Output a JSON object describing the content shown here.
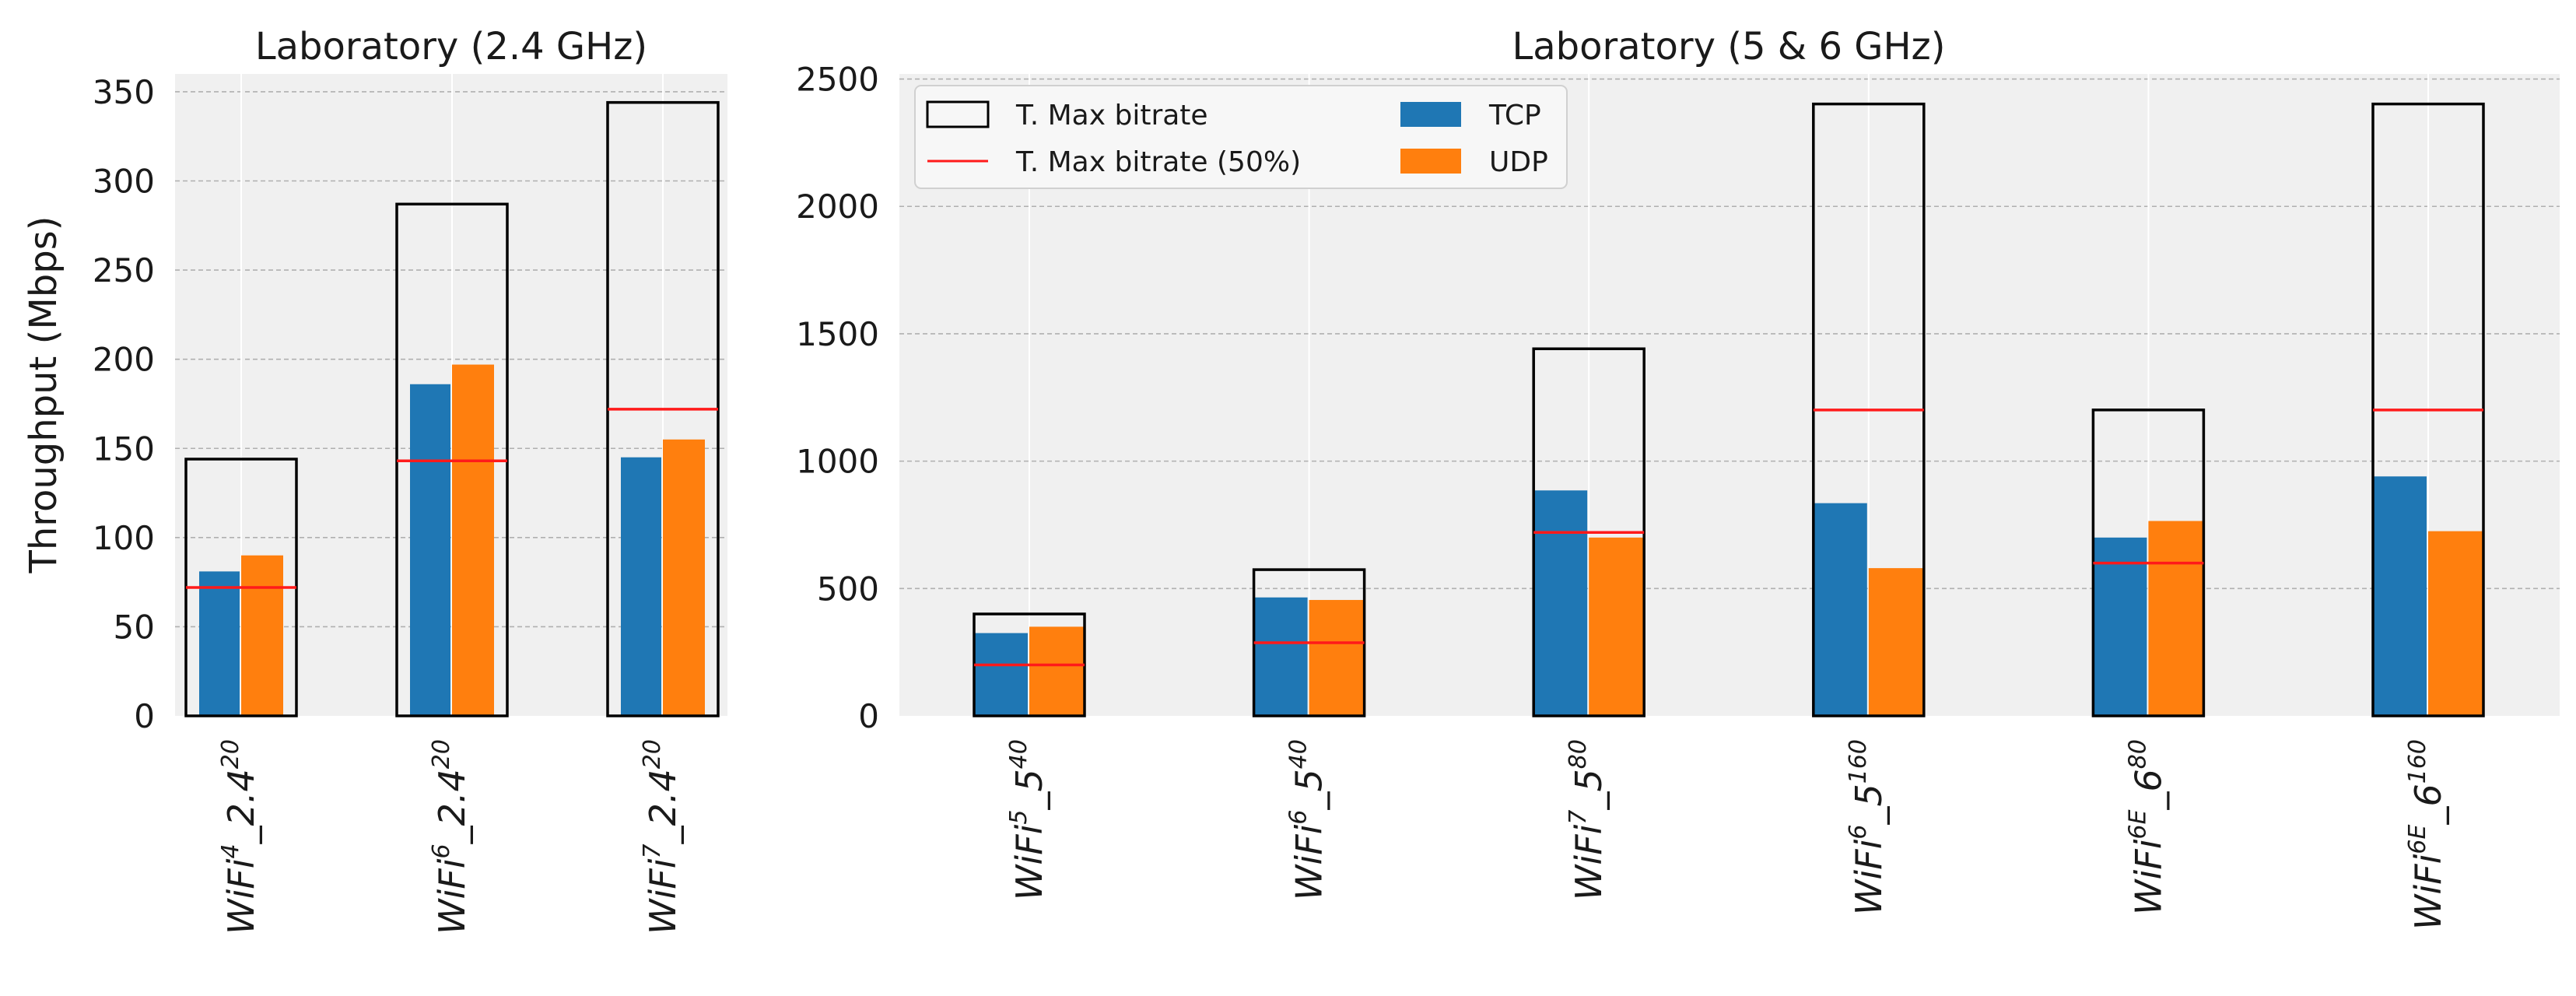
{
  "chart_data": [
    {
      "type": "bar",
      "title": "Laboratory (2.4 GHz)",
      "ylabel": "Throughput (Mbps)",
      "xlabel": "",
      "ylim": [
        0,
        360
      ],
      "yticks": [
        0,
        50,
        100,
        150,
        200,
        250,
        300,
        350
      ],
      "grid": true,
      "categories": [
        {
          "base": "WiFi",
          "sup1": "4",
          "mid": "_2.4",
          "sup2": "20"
        },
        {
          "base": "WiFi",
          "sup1": "6",
          "mid": "_2.4",
          "sup2": "20"
        },
        {
          "base": "WiFi",
          "sup1": "7",
          "mid": "_2.4",
          "sup2": "20"
        }
      ],
      "max_bitrate": [
        144,
        287,
        344
      ],
      "max_bitrate_50": [
        72,
        143,
        172
      ],
      "series": [
        {
          "name": "TCP",
          "values": [
            81,
            186,
            145
          ]
        },
        {
          "name": "UDP",
          "values": [
            90,
            197,
            155
          ]
        }
      ]
    },
    {
      "type": "bar",
      "title": "Laboratory (5 & 6 GHz)",
      "ylabel": "",
      "xlabel": "",
      "ylim": [
        0,
        2520
      ],
      "yticks": [
        0,
        500,
        1000,
        1500,
        2000,
        2500
      ],
      "grid": true,
      "legend_position": "top-left",
      "legend": {
        "max_bitrate": "T. Max bitrate",
        "max_bitrate_50": "T. Max bitrate (50%)",
        "tcp": "TCP",
        "udp": "UDP"
      },
      "categories": [
        {
          "base": "WiFi",
          "sup1": "5",
          "mid": "_5",
          "sup2": "40"
        },
        {
          "base": "WiFi",
          "sup1": "6",
          "mid": "_5",
          "sup2": "40"
        },
        {
          "base": "WiFi",
          "sup1": "7",
          "mid": "_5",
          "sup2": "80"
        },
        {
          "base": "WiFi",
          "sup1": "6",
          "mid": "_5",
          "sup2": "160"
        },
        {
          "base": "WiFi",
          "sup1": "6E",
          "mid": "_6",
          "sup2": "80"
        },
        {
          "base": "WiFi",
          "sup1": "6E",
          "mid": "_6",
          "sup2": "160"
        }
      ],
      "max_bitrate": [
        400,
        574,
        1441,
        2402,
        1201,
        2402
      ],
      "max_bitrate_50": [
        200,
        287,
        720,
        1201,
        600,
        1201
      ],
      "series": [
        {
          "name": "TCP",
          "values": [
            325,
            465,
            885,
            835,
            700,
            940
          ]
        },
        {
          "name": "UDP",
          "values": [
            350,
            455,
            700,
            580,
            765,
            725
          ]
        }
      ]
    }
  ],
  "colors": {
    "tcp": "#1f77b4",
    "udp": "#ff7f0e",
    "max_line": "#ff1a1a",
    "max_box": "#000000",
    "plot_bg": "#f0f0f0",
    "grid": "#b0b0b0"
  }
}
